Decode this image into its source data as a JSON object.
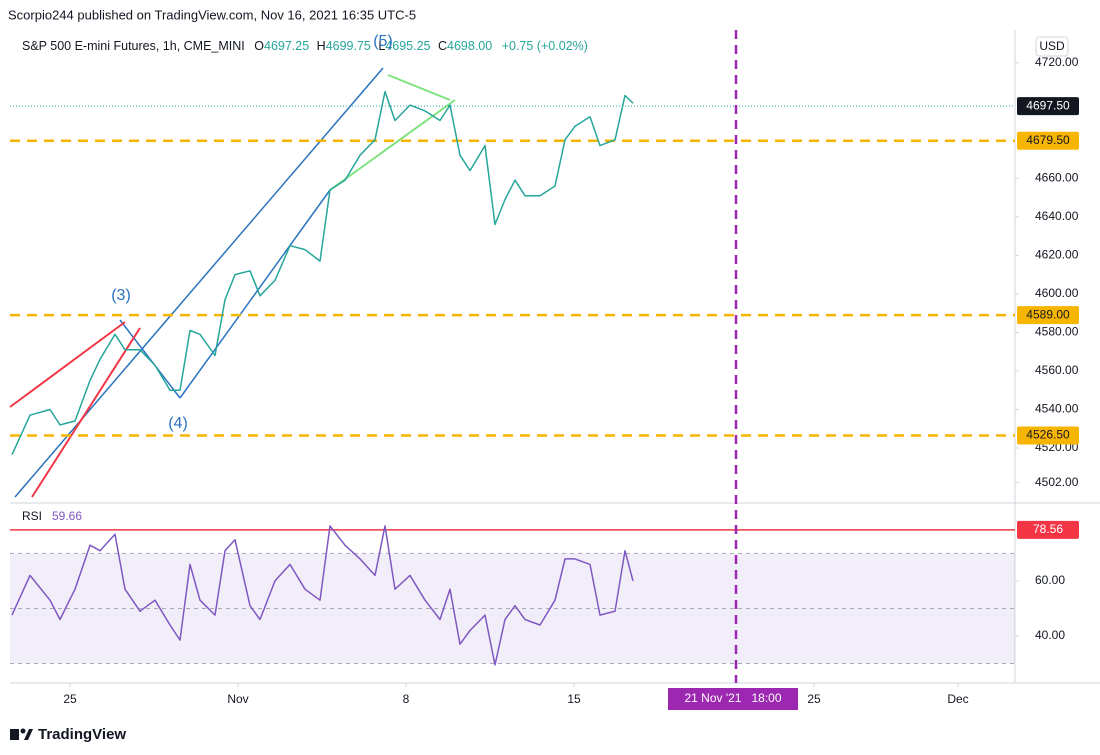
{
  "header": {
    "publisher": "Scorpio244 published on TradingView.com, Nov 16, 2021 16:35 UTC-5",
    "symbol": "S&P 500 E-mini Futures, 1h, CME_MINI",
    "ohlc": [
      {
        "label": "O",
        "value": "4697.25"
      },
      {
        "label": "H",
        "value": "4699.75"
      },
      {
        "label": "L",
        "value": "4695.25"
      },
      {
        "label": "C",
        "value": "4698.00"
      }
    ],
    "change": "+0.75 (+0.02%)",
    "currency": "USD"
  },
  "annotations": [
    "(3)",
    "(4)",
    "(5)"
  ],
  "footer": "TradingView",
  "chart_data": [
    {
      "type": "line",
      "color": "#26a69a",
      "x": [
        "2021-10-22T14:00",
        "2021-10-23T08:00",
        "2021-10-24T04:00",
        "2021-10-24T14:00",
        "2021-10-25T05:00",
        "2021-10-25T20:00",
        "2021-10-26T06:00",
        "2021-10-26T21:00",
        "2021-10-27T07:00",
        "2021-10-27T22:00",
        "2021-10-28T13:00",
        "2021-10-29T04:00",
        "2021-10-29T14:00",
        "2021-10-30T00:00",
        "2021-10-30T10:00",
        "2021-10-31T01:00",
        "2021-10-31T11:00",
        "2021-10-31T21:00",
        "2021-11-01T12:00",
        "2021-11-01T22:00",
        "2021-11-02T13:00",
        "2021-11-03T04:00",
        "2021-11-03T19:00",
        "2021-11-04T10:00",
        "2021-11-04T20:00",
        "2021-11-05T11:00",
        "2021-11-06T02:00",
        "2021-11-06T17:00",
        "2021-11-07T03:00",
        "2021-11-07T13:00",
        "2021-11-08T04:00",
        "2021-11-08T19:00",
        "2021-11-09T10:00",
        "2021-11-09T20:00",
        "2021-11-10T06:00",
        "2021-11-10T16:00",
        "2021-11-11T07:00",
        "2021-11-11T17:00",
        "2021-11-12T03:00",
        "2021-11-12T13:00",
        "2021-11-12T23:00",
        "2021-11-13T14:00",
        "2021-11-14T05:00",
        "2021-11-14T15:00",
        "2021-11-15T01:00",
        "2021-11-15T16:00",
        "2021-11-16T02:00",
        "2021-11-16T17:00",
        "2021-11-17T03:00",
        "2021-11-17T11:00"
      ],
      "values": [
        4516.5,
        4537,
        4540,
        4532,
        4534,
        4555,
        4566,
        4579,
        4571,
        4571,
        4563,
        4550,
        4550,
        4581,
        4579,
        4568,
        4597,
        4610,
        4612,
        4599,
        4607,
        4625,
        4623,
        4617,
        4654,
        4659,
        4672,
        4680,
        4705,
        4690,
        4698,
        4695,
        4690,
        4698,
        4672,
        4664,
        4677,
        4636,
        4649,
        4659,
        4651,
        4651,
        4656,
        4680,
        4687,
        4692,
        4677,
        4680,
        4703,
        4699
      ],
      "xlim": [
        "2021-10-22T12:00",
        "2021-12-03T09:00"
      ],
      "xticks": [
        {
          "value": "2021-10-25T00:00",
          "label": "25"
        },
        {
          "value": "2021-11-01T00:00",
          "label": "Nov"
        },
        {
          "value": "2021-11-08T00:00",
          "label": "8"
        },
        {
          "value": "2021-11-15T00:00",
          "label": "15"
        },
        {
          "value": "2021-11-25T00:00",
          "label": "25"
        },
        {
          "value": "2021-12-01T00:00",
          "label": "Dec"
        }
      ],
      "ylim": [
        4493,
        4737
      ],
      "yticks": [
        {
          "value": 4720,
          "label": "4720.00"
        },
        {
          "value": 4660,
          "label": "4660.00"
        },
        {
          "value": 4640,
          "label": "4640.00"
        },
        {
          "value": 4620,
          "label": "4620.00"
        },
        {
          "value": 4600,
          "label": "4600.00"
        },
        {
          "value": 4580,
          "label": "4580.00"
        },
        {
          "value": 4560,
          "label": "4560.00"
        },
        {
          "value": 4540,
          "label": "4540.00"
        },
        {
          "value": 4520,
          "label": "4520.00"
        },
        {
          "value": 4502,
          "label": "4502.00"
        }
      ],
      "levels": [
        {
          "value": 4697.5,
          "label": "4697.50",
          "color": "#131722",
          "style": "current"
        },
        {
          "value": 4679.5,
          "label": "4679.50",
          "color": "#f7b500",
          "style": "dashed"
        },
        {
          "value": 4589,
          "label": "4589.00",
          "color": "#f7b500",
          "style": "dashed"
        },
        {
          "value": 4526.5,
          "label": "4526.50",
          "color": "#f7b500",
          "style": "dashed"
        }
      ],
      "crosshair": {
        "value": "2021-11-21T18:00",
        "label": "21 Nov '21   18:00",
        "color": "#9c27b0"
      }
    },
    {
      "type": "line",
      "title": "RSI",
      "last_value": 59.66,
      "color": "#7e57c2",
      "x": [
        "2021-10-22T14:00",
        "2021-10-23T08:00",
        "2021-10-24T04:00",
        "2021-10-24T14:00",
        "2021-10-25T05:00",
        "2021-10-25T20:00",
        "2021-10-26T06:00",
        "2021-10-26T21:00",
        "2021-10-27T07:00",
        "2021-10-27T22:00",
        "2021-10-28T13:00",
        "2021-10-29T04:00",
        "2021-10-29T14:00",
        "2021-10-30T00:00",
        "2021-10-30T10:00",
        "2021-10-31T01:00",
        "2021-10-31T11:00",
        "2021-10-31T21:00",
        "2021-11-01T12:00",
        "2021-11-01T22:00",
        "2021-11-02T13:00",
        "2021-11-03T04:00",
        "2021-11-03T19:00",
        "2021-11-04T10:00",
        "2021-11-04T20:00",
        "2021-11-05T11:00",
        "2021-11-06T02:00",
        "2021-11-06T17:00",
        "2021-11-07T03:00",
        "2021-11-07T13:00",
        "2021-11-08T04:00",
        "2021-11-08T19:00",
        "2021-11-09T10:00",
        "2021-11-09T20:00",
        "2021-11-10T06:00",
        "2021-11-10T16:00",
        "2021-11-11T07:00",
        "2021-11-11T17:00",
        "2021-11-12T03:00",
        "2021-11-12T13:00",
        "2021-11-12T23:00",
        "2021-11-13T14:00",
        "2021-11-14T05:00",
        "2021-11-14T15:00",
        "2021-11-15T01:00",
        "2021-11-15T16:00",
        "2021-11-16T02:00",
        "2021-11-16T17:00",
        "2021-11-17T03:00",
        "2021-11-17T11:00"
      ],
      "values": [
        47.6,
        62,
        53,
        46,
        57,
        73,
        71,
        77,
        57,
        49,
        53,
        44,
        38.5,
        66,
        53,
        47.6,
        71,
        75,
        51,
        46,
        60,
        66,
        57,
        53,
        80,
        73,
        68,
        62,
        80,
        57,
        62,
        53,
        46,
        57,
        37,
        42,
        47.6,
        29.5,
        46,
        51,
        46,
        44,
        53,
        68,
        68,
        66,
        47.6,
        49,
        71,
        60
      ],
      "ylim": [
        24,
        87.6
      ],
      "yticks": [
        {
          "value": 60,
          "label": "60.00"
        },
        {
          "value": 40,
          "label": "40.00"
        }
      ],
      "band": [
        30,
        70
      ],
      "midline": 50,
      "levels": [
        {
          "value": 78.56,
          "label": "78.56",
          "color": "#f23645",
          "style": "solid"
        }
      ]
    }
  ]
}
